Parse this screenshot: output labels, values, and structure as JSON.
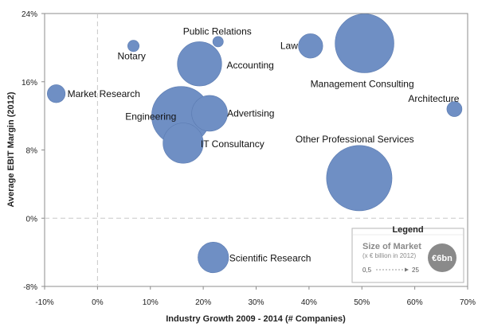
{
  "chart_data": {
    "type": "scatter",
    "subtype": "bubble",
    "title": "",
    "xlabel": "Industry Growth 2009 - 2014 (# Companies)",
    "ylabel": "Average EBIT Margin (2012)",
    "xlim": [
      -10,
      70
    ],
    "ylim": [
      -8,
      24
    ],
    "x_ticks": [
      -10,
      0,
      10,
      20,
      30,
      40,
      50,
      60,
      70
    ],
    "y_ticks": [
      -8,
      0,
      8,
      16,
      24
    ],
    "x_tick_labels": [
      "-10%",
      "0%",
      "10%",
      "20%",
      "30%",
      "40%",
      "50%",
      "60%",
      "70%"
    ],
    "y_tick_labels": [
      "-8%",
      "0%",
      "8%",
      "16%",
      "24%"
    ],
    "grid": false,
    "zero_lines": "dashed",
    "bubble_color": "#6f8fc4",
    "points": [
      {
        "label": "Notary",
        "x": 6.8,
        "y": 20.2,
        "size": 0.5
      },
      {
        "label": "Public Relations",
        "x": 22.8,
        "y": 20.7,
        "size": 0.4
      },
      {
        "label": "Law",
        "x": 40.3,
        "y": 20.2,
        "size": 3
      },
      {
        "label": "Management Consulting",
        "x": 50.5,
        "y": 20.5,
        "size": 20
      },
      {
        "label": "Accounting",
        "x": 19.3,
        "y": 18.1,
        "size": 11
      },
      {
        "label": "Market Research",
        "x": -7.8,
        "y": 14.6,
        "size": 1.5
      },
      {
        "label": "Architecture",
        "x": 67.5,
        "y": 12.8,
        "size": 1
      },
      {
        "label": "Engineering",
        "x": 15.8,
        "y": 12.0,
        "size": 20
      },
      {
        "label": "Advertising",
        "x": 21.2,
        "y": 12.3,
        "size": 7
      },
      {
        "label": "IT Consultancy",
        "x": 16.2,
        "y": 8.8,
        "size": 9
      },
      {
        "label": "Other Professional Services",
        "x": 49.5,
        "y": 4.7,
        "size": 25
      },
      {
        "label": "Scientific Research",
        "x": 21.9,
        "y": -4.6,
        "size": 5
      }
    ],
    "legend": {
      "title": "Legend",
      "heading": "Size of Market",
      "sub": "(x € billion in 2012)",
      "range_min": "0,5",
      "range_max": "25",
      "example_bubble_label": "€6bn",
      "position": "bottom-right"
    }
  }
}
